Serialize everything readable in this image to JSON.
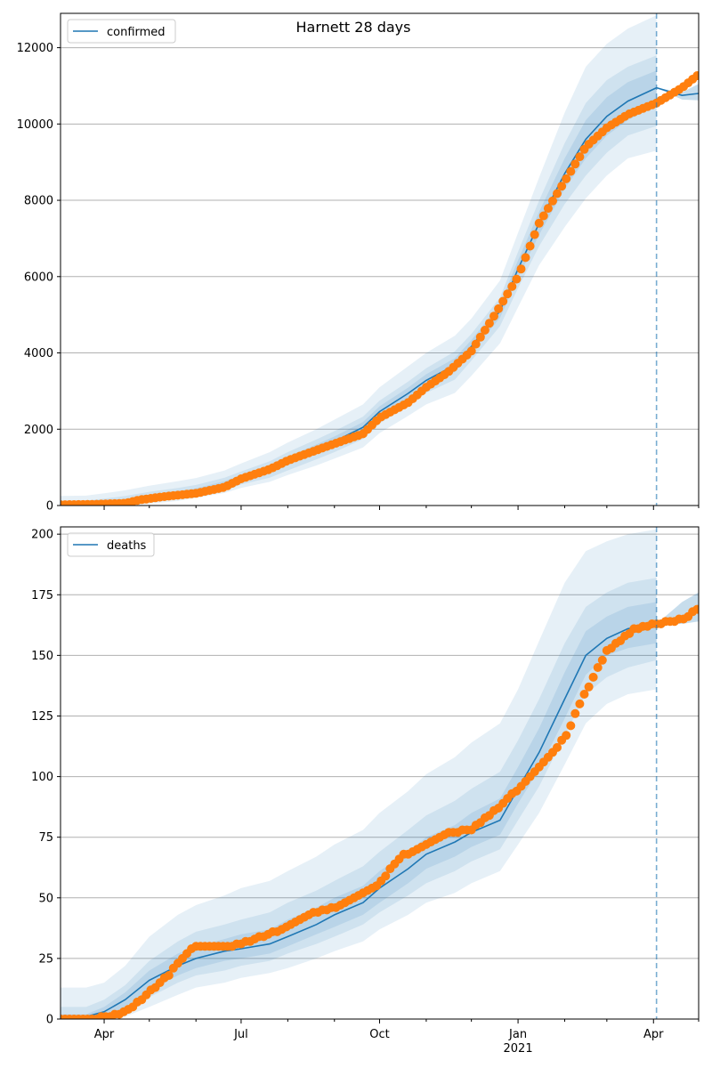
{
  "chart_data": {
    "title": "Harnett 28 days",
    "type": "line",
    "x_range": [
      "2020-03-03",
      "2021-05-01"
    ],
    "x_ticks_major": [
      {
        "date": "2020-04-01",
        "label": "Apr",
        "sublabel": ""
      },
      {
        "date": "2020-07-01",
        "label": "Jul",
        "sublabel": ""
      },
      {
        "date": "2020-10-01",
        "label": "Oct",
        "sublabel": ""
      },
      {
        "date": "2021-01-01",
        "label": "Jan",
        "sublabel": "2021"
      },
      {
        "date": "2021-04-01",
        "label": "Apr",
        "sublabel": ""
      }
    ],
    "x_ticks_minor": [
      "2020-05-01",
      "2020-06-01",
      "2020-08-01",
      "2020-09-01",
      "2020-11-01",
      "2020-12-01",
      "2021-02-01",
      "2021-03-01",
      "2021-05-01"
    ],
    "forecast_start": "2021-04-03",
    "grid": "y",
    "legend_position": "upper left",
    "colors": {
      "model": "#1f77b4",
      "observed": "#ff7f0e",
      "band": "#1f77b4",
      "forecast_line": "#1f77b4"
    },
    "panels": [
      {
        "series": "confirmed",
        "legend": "confirmed",
        "ylim": [
          0,
          12900
        ],
        "yticks": [
          0,
          2000,
          4000,
          6000,
          8000,
          10000,
          12000
        ],
        "model": {
          "x": [
            "2020-03-03",
            "2020-03-20",
            "2020-04-01",
            "2020-04-15",
            "2020-05-01",
            "2020-05-20",
            "2020-06-01",
            "2020-06-20",
            "2020-07-01",
            "2020-07-20",
            "2020-08-01",
            "2020-08-20",
            "2020-09-01",
            "2020-09-20",
            "2020-10-01",
            "2020-10-20",
            "2020-11-01",
            "2020-11-20",
            "2020-12-01",
            "2020-12-20",
            "2021-01-01",
            "2021-01-15",
            "2021-02-01",
            "2021-02-15",
            "2021-03-01",
            "2021-03-15",
            "2021-04-03",
            "2021-04-20",
            "2021-05-01"
          ],
          "y": [
            0,
            10,
            40,
            90,
            200,
            300,
            380,
            560,
            720,
            960,
            1180,
            1480,
            1680,
            2050,
            2460,
            2940,
            3280,
            3680,
            4170,
            5100,
            6200,
            7400,
            8700,
            9600,
            10200,
            10600,
            10950,
            10750,
            10800
          ]
        },
        "band_outer_upper": [
          250,
          260,
          320,
          400,
          520,
          640,
          720,
          920,
          1100,
          1400,
          1650,
          2000,
          2250,
          2650,
          3100,
          3650,
          4000,
          4450,
          4900,
          5900,
          7150,
          8600,
          10300,
          11500,
          12100,
          12500,
          12850
        ],
        "band_outer_lower": [
          0,
          0,
          0,
          0,
          50,
          120,
          200,
          330,
          460,
          620,
          800,
          1050,
          1230,
          1520,
          1900,
          2350,
          2650,
          2950,
          3400,
          4250,
          5200,
          6300,
          7300,
          8050,
          8650,
          9100,
          9300
        ],
        "band_mid_upper": [
          120,
          130,
          180,
          250,
          360,
          460,
          540,
          730,
          890,
          1160,
          1400,
          1730,
          1950,
          2330,
          2750,
          3250,
          3600,
          4040,
          4500,
          5450,
          6650,
          8000,
          9500,
          10550,
          11150,
          11500,
          11800
        ],
        "band_mid_lower": [
          0,
          0,
          5,
          30,
          110,
          190,
          260,
          400,
          550,
          730,
          920,
          1210,
          1400,
          1740,
          2150,
          2620,
          2950,
          3300,
          3800,
          4700,
          5700,
          6800,
          7900,
          8650,
          9250,
          9700,
          9950
        ],
        "band_inner_upper": [
          50,
          60,
          100,
          160,
          270,
          370,
          450,
          640,
          800,
          1050,
          1280,
          1600,
          1810,
          2190,
          2600,
          3090,
          3440,
          3860,
          4340,
          5280,
          6430,
          7700,
          9100,
          10100,
          10700,
          11100,
          11400
        ],
        "band_inner_lower": [
          0,
          0,
          15,
          50,
          140,
          230,
          310,
          480,
          640,
          870,
          1080,
          1370,
          1560,
          1910,
          2320,
          2790,
          3120,
          3500,
          4000,
          4920,
          5970,
          7100,
          8300,
          9100,
          9700,
          10100,
          10500
        ],
        "forecast_band_upper": [
          10950,
          10830,
          11050
        ],
        "forecast_band_lower": [
          10950,
          10640,
          10620
        ],
        "observed": {
          "x": [
            "2020-03-03",
            "2020-03-25",
            "2020-04-15",
            "2020-04-25",
            "2020-05-10",
            "2020-06-01",
            "2020-06-20",
            "2020-07-01",
            "2020-07-20",
            "2020-08-01",
            "2020-08-20",
            "2020-09-01",
            "2020-09-20",
            "2020-10-01",
            "2020-10-20",
            "2020-11-01",
            "2020-11-15",
            "2020-12-01",
            "2020-12-15",
            "2021-01-01",
            "2021-01-15",
            "2021-02-01",
            "2021-02-15",
            "2021-03-01",
            "2021-03-15",
            "2021-04-03",
            "2021-04-20",
            "2021-05-01"
          ],
          "y": [
            20,
            30,
            60,
            150,
            230,
            320,
            480,
            700,
            950,
            1180,
            1450,
            1620,
            1880,
            2300,
            2700,
            3100,
            3480,
            4050,
            4900,
            6000,
            7400,
            8500,
            9400,
            9900,
            10250,
            10550,
            10950,
            11300
          ]
        }
      },
      {
        "series": "deaths",
        "legend": "deaths",
        "ylim": [
          0,
          203
        ],
        "yticks": [
          0,
          25,
          50,
          75,
          100,
          125,
          150,
          175,
          200
        ],
        "model": {
          "x": [
            "2020-03-03",
            "2020-03-20",
            "2020-04-01",
            "2020-04-15",
            "2020-05-01",
            "2020-05-20",
            "2020-06-01",
            "2020-06-20",
            "2020-07-01",
            "2020-07-20",
            "2020-08-01",
            "2020-08-20",
            "2020-09-01",
            "2020-09-20",
            "2020-10-01",
            "2020-10-20",
            "2020-11-01",
            "2020-11-20",
            "2020-12-01",
            "2020-12-20",
            "2021-01-01",
            "2021-01-15",
            "2021-02-01",
            "2021-02-15",
            "2021-03-01",
            "2021-03-15",
            "2021-04-03",
            "2021-04-20",
            "2021-05-01"
          ],
          "y": [
            0,
            1,
            3,
            8,
            16,
            22,
            25,
            28,
            29,
            31,
            34,
            39,
            43,
            48,
            54,
            62,
            68,
            73,
            77,
            82,
            95,
            110,
            132,
            150,
            157,
            161,
            163,
            166,
            168
          ]
        },
        "band_outer_upper": [
          13,
          13,
          15,
          22,
          34,
          43,
          47,
          51,
          54,
          57,
          61,
          67,
          72,
          78,
          85,
          94,
          101,
          108,
          114,
          122,
          136,
          156,
          180,
          193,
          197,
          200,
          202
        ],
        "band_outer_lower": [
          0,
          0,
          0,
          1,
          5,
          10,
          13,
          15,
          17,
          19,
          21,
          25,
          28,
          32,
          37,
          43,
          48,
          52,
          56,
          61,
          72,
          85,
          105,
          122,
          130,
          134,
          136
        ],
        "band_mid_upper": [
          5,
          5,
          8,
          14,
          24,
          32,
          36,
          39,
          41,
          44,
          48,
          53,
          57,
          63,
          69,
          78,
          84,
          90,
          95,
          102,
          115,
          132,
          155,
          170,
          176,
          180,
          182
        ],
        "band_mid_lower": [
          0,
          0,
          0,
          3,
          9,
          15,
          18,
          20,
          22,
          24,
          27,
          31,
          34,
          39,
          44,
          51,
          56,
          61,
          65,
          70,
          82,
          96,
          117,
          134,
          141,
          145,
          148
        ],
        "band_inner_upper": [
          2,
          2,
          5,
          11,
          20,
          27,
          30,
          33,
          35,
          37,
          41,
          46,
          50,
          55,
          61,
          69,
          75,
          80,
          85,
          91,
          104,
          120,
          143,
          160,
          166,
          170,
          172
        ],
        "band_inner_lower": [
          0,
          0,
          1,
          5,
          12,
          18,
          21,
          24,
          25,
          27,
          30,
          35,
          38,
          43,
          48,
          56,
          62,
          67,
          71,
          76,
          89,
          103,
          124,
          142,
          150,
          153,
          155
        ],
        "forecast_band_upper": [
          163,
          172,
          176
        ],
        "forecast_band_lower": [
          163,
          163,
          164
        ],
        "observed": {
          "x": [
            "2020-03-03",
            "2020-03-25",
            "2020-04-10",
            "2020-04-20",
            "2020-05-01",
            "2020-05-15",
            "2020-05-25",
            "2020-06-01",
            "2020-06-20",
            "2020-07-01",
            "2020-07-15",
            "2020-08-01",
            "2020-08-15",
            "2020-09-01",
            "2020-09-20",
            "2020-10-01",
            "2020-10-15",
            "2020-11-01",
            "2020-11-15",
            "2020-12-01",
            "2020-12-15",
            "2021-01-01",
            "2021-01-15",
            "2021-02-01",
            "2021-02-15",
            "2021-03-01",
            "2021-03-20",
            "2021-04-03",
            "2021-04-20",
            "2021-05-01"
          ],
          "y": [
            0,
            0,
            2,
            5,
            11,
            19,
            27,
            30,
            30,
            31,
            34,
            38,
            43,
            46,
            52,
            56,
            67,
            72,
            77,
            78,
            85,
            95,
            104,
            116,
            135,
            152,
            161,
            163,
            165,
            169
          ]
        }
      }
    ]
  }
}
